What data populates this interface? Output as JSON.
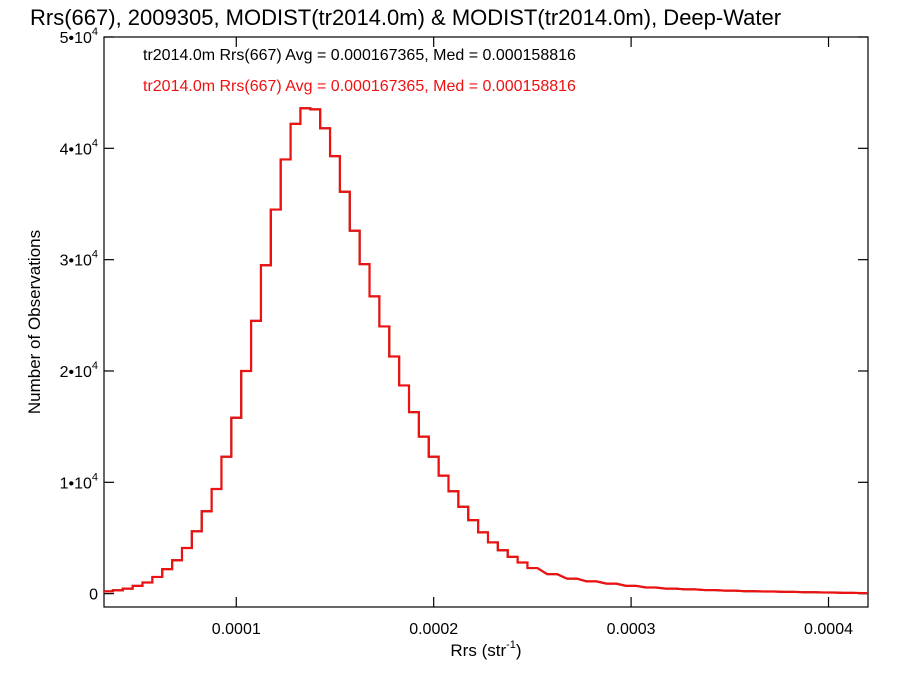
{
  "chart_data": {
    "type": "line",
    "title": "Rrs(667), 2009305, MODIST(tr2014.0m) & MODIST(tr2014.0m), Deep-Water",
    "xlabel": {
      "main": "Rrs (str",
      "sup": "-1",
      "end": ")"
    },
    "ylabel": "Number of Observations",
    "xlim": [
      3.3e-05,
      0.00042
    ],
    "ylim": [
      -1200,
      50000
    ],
    "x_ticks": [
      {
        "value": 0.0001,
        "label": "0.0001"
      },
      {
        "value": 0.0002,
        "label": "0.0002"
      },
      {
        "value": 0.0003,
        "label": "0.0003"
      },
      {
        "value": 0.0004,
        "label": "0.0004"
      }
    ],
    "y_ticks": [
      {
        "value": 0,
        "label": "0",
        "sup": ""
      },
      {
        "value": 10000,
        "label": "1•10",
        "sup": "4"
      },
      {
        "value": 20000,
        "label": "2•10",
        "sup": "4"
      },
      {
        "value": 30000,
        "label": "3•10",
        "sup": "4"
      },
      {
        "value": 40000,
        "label": "4•10",
        "sup": "4"
      },
      {
        "value": 50000,
        "label": "5•10",
        "sup": "4"
      }
    ],
    "annotations": [
      {
        "text": "tr2014.0m Rrs(667) Avg = 0.000167365, Med = 0.000158816",
        "color": "#000000"
      },
      {
        "text": "tr2014.0m Rrs(667) Avg = 0.000167365, Med = 0.000158816",
        "color": "#ee1111"
      }
    ],
    "series": [
      {
        "color": "#000000",
        "x": [
          3.5e-05,
          4e-05,
          4.5e-05,
          5e-05,
          5.5e-05,
          6e-05,
          6.5e-05,
          7e-05,
          7.5e-05,
          8e-05,
          8.5e-05,
          9e-05,
          9.5e-05,
          0.0001,
          0.000105,
          0.00011,
          0.000115,
          0.00012,
          0.000125,
          0.00013,
          0.000135,
          0.00014,
          0.000145,
          0.00015,
          0.000155,
          0.00016,
          0.000165,
          0.00017,
          0.000175,
          0.00018,
          0.000185,
          0.00019,
          0.000195,
          0.0002,
          0.000205,
          0.00021,
          0.000215,
          0.00022,
          0.000225,
          0.00023,
          0.000235,
          0.00024,
          0.000245,
          0.00025,
          0.00026,
          0.00027,
          0.00028,
          0.00029,
          0.0003,
          0.00031,
          0.00032,
          0.00033,
          0.00034,
          0.00035,
          0.00036,
          0.00037,
          0.00038,
          0.00039,
          0.0004,
          0.00041,
          0.00042
        ],
        "y": [
          200,
          300,
          450,
          700,
          1000,
          1500,
          2200,
          3000,
          4100,
          5600,
          7400,
          9400,
          12300,
          15800,
          20000,
          24500,
          29500,
          34500,
          39000,
          42200,
          43600,
          43500,
          41800,
          39300,
          36100,
          32600,
          29600,
          26700,
          24000,
          21300,
          18700,
          16300,
          14100,
          12300,
          10600,
          9200,
          7800,
          6600,
          5500,
          4600,
          3900,
          3300,
          2800,
          2300,
          1750,
          1350,
          1100,
          900,
          700,
          550,
          450,
          380,
          320,
          270,
          220,
          190,
          160,
          130,
          100,
          70,
          50
        ]
      },
      {
        "color": "#ee1111",
        "x": [
          3.5e-05,
          4e-05,
          4.5e-05,
          5e-05,
          5.5e-05,
          6e-05,
          6.5e-05,
          7e-05,
          7.5e-05,
          8e-05,
          8.5e-05,
          9e-05,
          9.5e-05,
          0.0001,
          0.000105,
          0.00011,
          0.000115,
          0.00012,
          0.000125,
          0.00013,
          0.000135,
          0.00014,
          0.000145,
          0.00015,
          0.000155,
          0.00016,
          0.000165,
          0.00017,
          0.000175,
          0.00018,
          0.000185,
          0.00019,
          0.000195,
          0.0002,
          0.000205,
          0.00021,
          0.000215,
          0.00022,
          0.000225,
          0.00023,
          0.000235,
          0.00024,
          0.000245,
          0.00025,
          0.00026,
          0.00027,
          0.00028,
          0.00029,
          0.0003,
          0.00031,
          0.00032,
          0.00033,
          0.00034,
          0.00035,
          0.00036,
          0.00037,
          0.00038,
          0.00039,
          0.0004,
          0.00041,
          0.00042
        ],
        "y": [
          200,
          300,
          450,
          700,
          1000,
          1500,
          2200,
          3000,
          4100,
          5600,
          7400,
          9400,
          12300,
          15800,
          20000,
          24500,
          29500,
          34500,
          39000,
          42200,
          43600,
          43500,
          41800,
          39300,
          36100,
          32600,
          29600,
          26700,
          24000,
          21300,
          18700,
          16300,
          14100,
          12300,
          10600,
          9200,
          7800,
          6600,
          5500,
          4600,
          3900,
          3300,
          2800,
          2300,
          1750,
          1350,
          1100,
          900,
          700,
          550,
          450,
          380,
          320,
          270,
          220,
          190,
          160,
          130,
          100,
          70,
          50
        ]
      }
    ]
  }
}
